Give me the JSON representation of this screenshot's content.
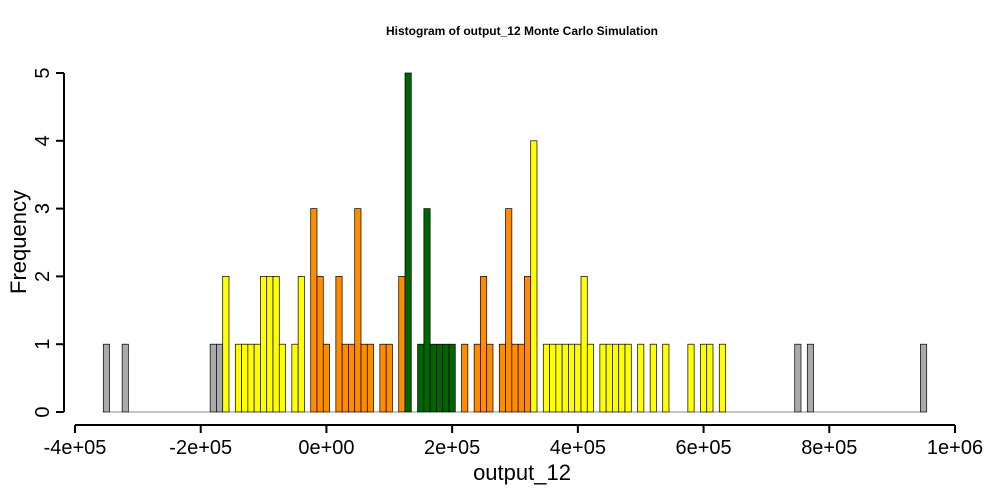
{
  "chart_data": {
    "type": "bar",
    "title": "Histogram of  output_12  Monte Carlo Simulation",
    "xlabel": "output_12",
    "ylabel": "Frequency",
    "xlim": [
      -400000,
      1000000
    ],
    "ylim": [
      0,
      5
    ],
    "x_ticks": [
      -400000,
      -200000,
      0,
      200000,
      400000,
      600000,
      800000,
      1000000
    ],
    "x_tick_labels": [
      "-4e+05",
      "-2e+05",
      "0e+00",
      "2e+05",
      "4e+05",
      "6e+05",
      "8e+05",
      "1e+06"
    ],
    "y_ticks": [
      0,
      1,
      2,
      3,
      4,
      5
    ],
    "y_tick_labels": [
      "0",
      "1",
      "2",
      "3",
      "4",
      "5"
    ],
    "bin_start": -355000,
    "bin_width": 10000,
    "counts": [
      1,
      0,
      0,
      1,
      0,
      0,
      0,
      0,
      0,
      0,
      0,
      0,
      0,
      0,
      0,
      0,
      0,
      1,
      1,
      2,
      0,
      1,
      1,
      1,
      1,
      2,
      2,
      2,
      1,
      0,
      1,
      2,
      0,
      3,
      2,
      1,
      0,
      2,
      1,
      1,
      3,
      1,
      1,
      0,
      1,
      1,
      0,
      2,
      5,
      0,
      1,
      3,
      1,
      1,
      1,
      1,
      0,
      1,
      0,
      1,
      2,
      1,
      0,
      1,
      3,
      1,
      1,
      2,
      4,
      0,
      1,
      1,
      1,
      1,
      1,
      1,
      2,
      1,
      0,
      1,
      1,
      1,
      1,
      1,
      0,
      1,
      0,
      1,
      0,
      1,
      0,
      0,
      0,
      1,
      0,
      1,
      1,
      0,
      1,
      0,
      0,
      0,
      0,
      0,
      0,
      0,
      0,
      0,
      0,
      0,
      1,
      0,
      1,
      0,
      0,
      0,
      0,
      0,
      0,
      0,
      0,
      0,
      0,
      0,
      0,
      0,
      0,
      0,
      0,
      0,
      1
    ],
    "bin_colors": [
      "#aaaaaa",
      "#aaaaaa",
      "#aaaaaa",
      "#aaaaaa",
      "#aaaaaa",
      "#aaaaaa",
      "#aaaaaa",
      "#aaaaaa",
      "#aaaaaa",
      "#aaaaaa",
      "#aaaaaa",
      "#aaaaaa",
      "#aaaaaa",
      "#aaaaaa",
      "#aaaaaa",
      "#aaaaaa",
      "#aaaaaa",
      "#aaaaaa",
      "#aaaaaa",
      "#ffff00",
      "#ffff00",
      "#ffff00",
      "#ffff00",
      "#ffff00",
      "#ffff00",
      "#ffff00",
      "#ffff00",
      "#ffff00",
      "#ffff00",
      "#ffff00",
      "#ffff00",
      "#ffff00",
      "#ffff00",
      "#ff8c00",
      "#ff8c00",
      "#ff8c00",
      "#ff8c00",
      "#ff8c00",
      "#ff8c00",
      "#ff8c00",
      "#ff8c00",
      "#ff8c00",
      "#ff8c00",
      "#ff8c00",
      "#ff8c00",
      "#ff8c00",
      "#ff8c00",
      "#ff8c00",
      "#006400",
      "#006400",
      "#006400",
      "#006400",
      "#006400",
      "#006400",
      "#006400",
      "#006400",
      "#ff8c00",
      "#ff8c00",
      "#ff8c00",
      "#ff8c00",
      "#ff8c00",
      "#ff8c00",
      "#ff8c00",
      "#ff8c00",
      "#ff8c00",
      "#ff8c00",
      "#ff8c00",
      "#ff8c00",
      "#ffff00",
      "#ffff00",
      "#ffff00",
      "#ffff00",
      "#ffff00",
      "#ffff00",
      "#ffff00",
      "#ffff00",
      "#ffff00",
      "#ffff00",
      "#ffff00",
      "#ffff00",
      "#ffff00",
      "#ffff00",
      "#ffff00",
      "#ffff00",
      "#ffff00",
      "#ffff00",
      "#ffff00",
      "#ffff00",
      "#ffff00",
      "#ffff00",
      "#ffff00",
      "#ffff00",
      "#ffff00",
      "#ffff00",
      "#ffff00",
      "#ffff00",
      "#ffff00",
      "#ffff00",
      "#ffff00",
      "#ffff00",
      "#ffff00",
      "#ffff00",
      "#ffff00",
      "#ffff00",
      "#aaaaaa",
      "#aaaaaa",
      "#aaaaaa",
      "#aaaaaa",
      "#aaaaaa",
      "#aaaaaa",
      "#aaaaaa",
      "#aaaaaa",
      "#aaaaaa",
      "#aaaaaa",
      "#aaaaaa",
      "#aaaaaa",
      "#aaaaaa",
      "#aaaaaa",
      "#aaaaaa",
      "#aaaaaa",
      "#aaaaaa",
      "#aaaaaa",
      "#aaaaaa",
      "#aaaaaa",
      "#aaaaaa",
      "#aaaaaa",
      "#aaaaaa",
      "#aaaaaa",
      "#aaaaaa",
      "#aaaaaa",
      "#aaaaaa",
      "#aaaaaa",
      "#aaaaaa",
      "#aaaaaa",
      "#aaaaaa",
      "#aaaaaa",
      "#aaaaaa"
    ],
    "color_key": {
      "outer": "#aaaaaa",
      "mid": "#ffff00",
      "inner": "#ff8c00",
      "center": "#006400"
    },
    "grid": false,
    "legend": "none"
  }
}
